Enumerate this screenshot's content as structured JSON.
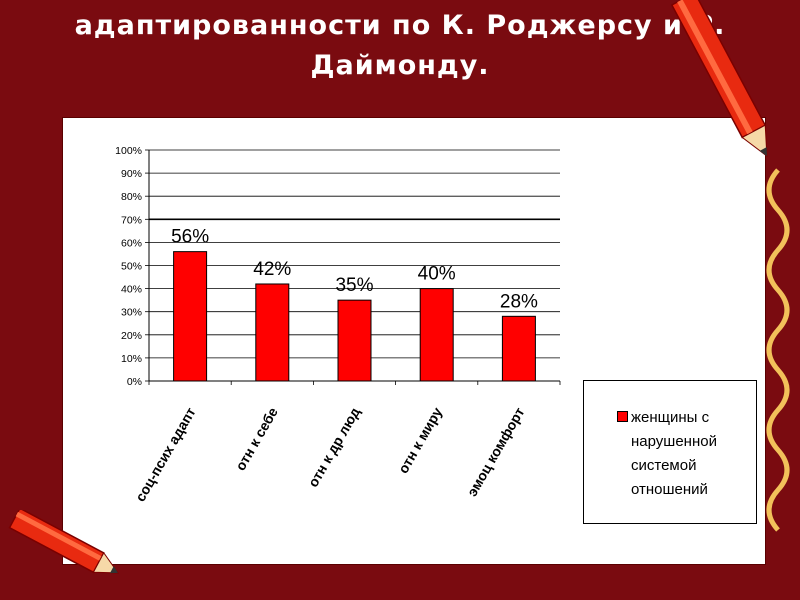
{
  "slide": {
    "title_lines": [
      "адаптированности по К. Роджерсу и Р.",
      "Даймонду."
    ]
  },
  "colors": {
    "background": "#7a0b10",
    "bar_fill": "#ff0000",
    "pencil": "#e82a10"
  },
  "chart_data": {
    "type": "bar",
    "categories": [
      "соц-псих адапт",
      "отн к себе",
      "отн к др люд",
      "отн к миру",
      "эмоц комфорт"
    ],
    "series": [
      {
        "name": "женщины с нарушенной системой отношений",
        "values": [
          56,
          42,
          35,
          40,
          28
        ]
      }
    ],
    "data_labels": [
      "56%",
      "42%",
      "35%",
      "40%",
      "28%"
    ],
    "y_ticks": [
      "0%",
      "10%",
      "20%",
      "30%",
      "40%",
      "50%",
      "60%",
      "70%",
      "80%",
      "90%",
      "100%"
    ],
    "ylim": [
      0,
      100
    ],
    "grid": true,
    "legend_position": "right",
    "legend_lines": [
      "женщины с",
      "нарушенной",
      "системой",
      "отношений"
    ]
  }
}
